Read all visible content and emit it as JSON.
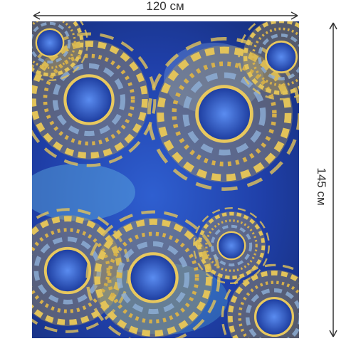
{
  "dimensions": {
    "width": "120 см",
    "height": "145 см"
  }
}
